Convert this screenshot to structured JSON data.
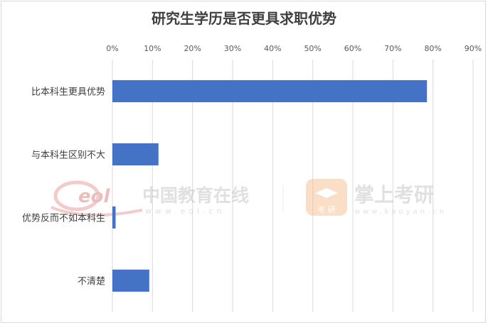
{
  "chart_data": {
    "type": "bar",
    "orientation": "horizontal",
    "title": "研究生学历是否更具求职优势",
    "categories": [
      "比本科生更具优势",
      "与本科生区别不大",
      "优势反而不如本科生",
      "不清楚"
    ],
    "values": [
      78.5,
      11.5,
      0.8,
      9.2
    ],
    "xlim": [
      0,
      90
    ],
    "xticks": [
      "0%",
      "10%",
      "20%",
      "30%",
      "40%",
      "50%",
      "60%",
      "70%",
      "80%",
      "90%"
    ],
    "x_axis_position": "top",
    "grid": true,
    "legend": "none",
    "bar_color": "#4472c4",
    "grid_color": "#d9d9d9"
  },
  "watermarks": {
    "left_brand": "中国教育在线",
    "left_url": "www.eol.cn",
    "right_brand": "掌上考研",
    "right_url": "www.kaoyan.cn",
    "logo_text": "eol",
    "badge_text": "考 研"
  }
}
